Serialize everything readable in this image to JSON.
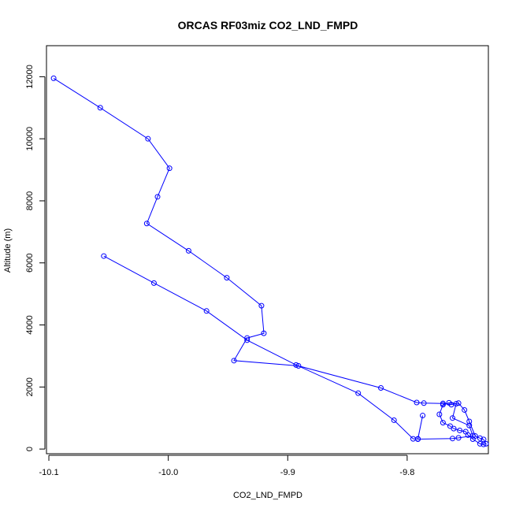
{
  "chart_data": {
    "type": "line",
    "title": "ORCAS RF03miz CO2_LND_FMPD",
    "xlabel": "CO2_LND_FMPD",
    "ylabel": "Altitude (m)",
    "xlim": [
      -10.102,
      -9.732
    ],
    "ylim": [
      -150,
      13000
    ],
    "xticks": [
      -10.1,
      -10.0,
      -9.9,
      -9.8
    ],
    "xtick_labels": [
      "-10.1",
      "-10.0",
      "-9.9",
      "-9.8"
    ],
    "yticks": [
      0,
      2000,
      4000,
      6000,
      8000,
      10000,
      12000
    ],
    "ytick_labels": [
      "0",
      "2000",
      "4000",
      "6000",
      "8000",
      "10000",
      "12000"
    ],
    "grid": false,
    "series": [
      {
        "color": "#0000ff",
        "marker": "open-circle",
        "x": [
          -10.096,
          -10.057,
          -10.017,
          -9.999,
          -10.009,
          -10.018,
          -9.983,
          -9.951,
          -9.922,
          -9.92,
          -9.934,
          -9.945,
          -9.891,
          -9.822,
          -9.792,
          -9.786,
          -9.77,
          -9.763,
          -9.757,
          -9.752,
          -9.748,
          -9.743,
          -9.739,
          -9.736,
          -9.734,
          -9.736,
          -9.739,
          -9.745,
          -9.749,
          -9.751,
          -9.756,
          -9.761,
          -9.764,
          -9.77,
          -9.773,
          -9.77,
          -9.765,
          -9.759,
          -9.762,
          -9.748,
          -9.745,
          -9.757,
          -9.762,
          -9.791,
          -9.787,
          -9.791,
          -9.795,
          -9.811,
          -9.841,
          -9.893,
          -9.934,
          -9.968,
          -10.012,
          -10.054
        ],
        "y": [
          11950,
          11000,
          10000,
          9050,
          8130,
          7270,
          6390,
          5520,
          4620,
          3730,
          3580,
          2850,
          2680,
          1970,
          1500,
          1480,
          1470,
          1430,
          1480,
          1260,
          890,
          420,
          350,
          310,
          170,
          150,
          170,
          320,
          450,
          560,
          600,
          660,
          740,
          850,
          1120,
          1430,
          1490,
          1460,
          1000,
          760,
          430,
          360,
          340,
          320,
          1080,
          330,
          330,
          930,
          1800,
          2710,
          3510,
          4450,
          5350,
          6220
        ]
      }
    ]
  }
}
